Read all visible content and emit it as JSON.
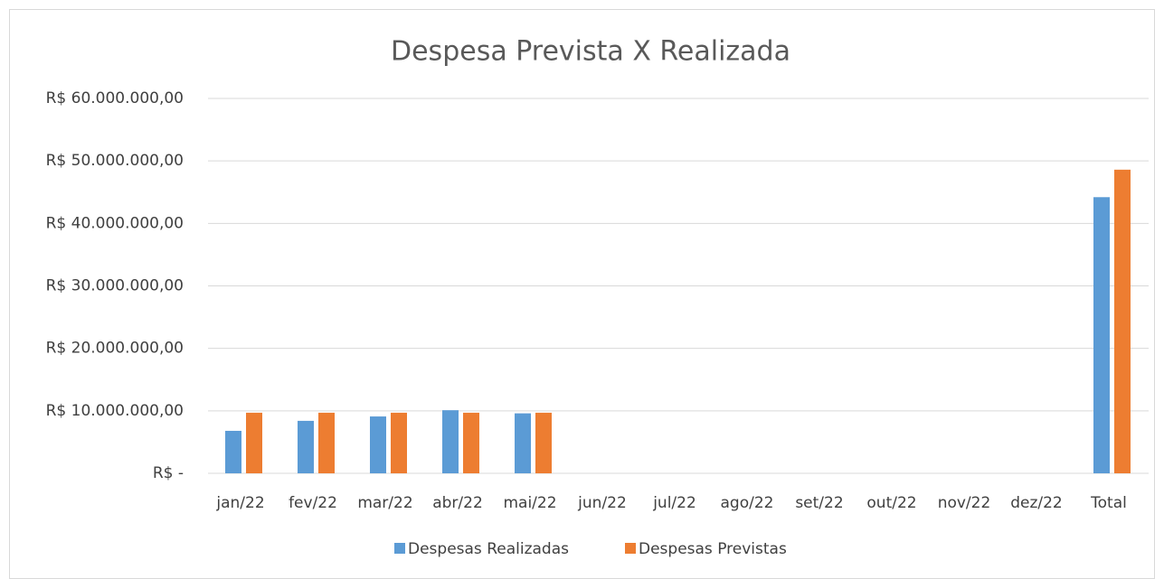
{
  "chart_data": {
    "type": "bar",
    "title": "Despesa Prevista X Realizada",
    "categories": [
      "jan/22",
      "fev/22",
      "mar/22",
      "abr/22",
      "mai/22",
      "jun/22",
      "jul/22",
      "ago/22",
      "set/22",
      "out/22",
      "nov/22",
      "dez/22",
      "Total"
    ],
    "series": [
      {
        "name": "Despesas Realizadas",
        "color": "#5b9bd5",
        "values": [
          6800000,
          8400000,
          9100000,
          10100000,
          9600000,
          null,
          null,
          null,
          null,
          null,
          null,
          null,
          44200000
        ]
      },
      {
        "name": "Despesas Previstas",
        "color": "#ed7d31",
        "values": [
          9700000,
          9700000,
          9700000,
          9700000,
          9700000,
          null,
          null,
          null,
          null,
          null,
          null,
          null,
          48600000
        ]
      }
    ],
    "ylim": [
      0,
      60000000
    ],
    "yticks": [
      {
        "value": 0,
        "label": "R$ -"
      },
      {
        "value": 10000000,
        "label": "R$ 10.000.000,00"
      },
      {
        "value": 20000000,
        "label": "R$ 20.000.000,00"
      },
      {
        "value": 30000000,
        "label": "R$ 30.000.000,00"
      },
      {
        "value": 40000000,
        "label": "R$ 40.000.000,00"
      },
      {
        "value": 50000000,
        "label": "R$ 50.000.000,00"
      },
      {
        "value": 60000000,
        "label": "R$ 60.000.000,00"
      }
    ],
    "grid": true,
    "legend": "bottom"
  }
}
